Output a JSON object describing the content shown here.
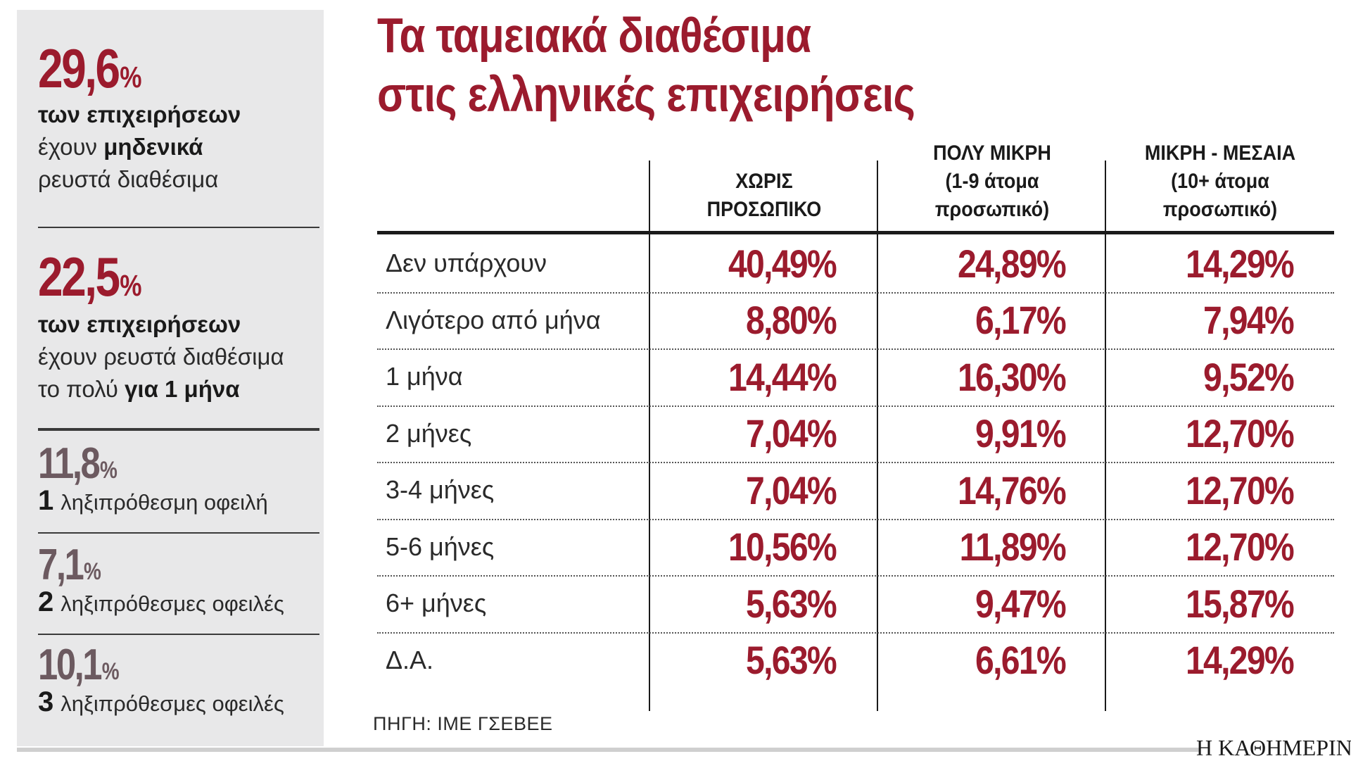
{
  "title": {
    "line1": "Τα ταμειακά διαθέσιμα",
    "line2": "στις ελληνικές επιχειρήσεις"
  },
  "sidebar": {
    "stat1": {
      "number": "29,6",
      "pct": "%",
      "line1": "των επιχειρήσεων",
      "line2_pre": "έχουν ",
      "line2_bold": "μηδενικά",
      "line3": "ρευστά διαθέσιμα"
    },
    "stat2": {
      "number": "22,5",
      "pct": "%",
      "line1": "των επιχειρήσεων",
      "line2": "έχουν ρευστά διαθέσιμα",
      "line3_pre": "το πολύ ",
      "line3_bold": "για 1 μήνα"
    },
    "stat3": {
      "number": "11,8",
      "pct": "%",
      "count": "1",
      "text": "ληξιπρόθεσμη οφειλή"
    },
    "stat4": {
      "number": "7,1",
      "pct": "%",
      "count": "2",
      "text": "ληξιπρόθεσμες οφειλές"
    },
    "stat5": {
      "number": "10,1",
      "pct": "%",
      "count": "3",
      "text": "ληξιπρόθεσμες οφειλές"
    }
  },
  "chart_data": {
    "type": "table",
    "columns": [
      {
        "line1": "ΧΩΡΙΣ",
        "line2": "ΠΡΟΣΩΠΙΚΟ",
        "line3": ""
      },
      {
        "line1": "ΠΟΛΥ ΜΙΚΡΗ",
        "line2": "(1-9 άτομα",
        "line3": "προσωπικό)"
      },
      {
        "line1": "ΜΙΚΡΗ - ΜΕΣΑΙΑ",
        "line2": "(10+ άτομα",
        "line3": "προσωπικό)"
      }
    ],
    "rows": [
      {
        "label": "Δεν υπάρχουν",
        "values": [
          "40,49%",
          "24,89%",
          "14,29%"
        ]
      },
      {
        "label": "Λιγότερο από μήνα",
        "values": [
          "8,80%",
          "6,17%",
          "7,94%"
        ]
      },
      {
        "label": "1 μήνα",
        "values": [
          "14,44%",
          "16,30%",
          "9,52%"
        ]
      },
      {
        "label": "2 μήνες",
        "values": [
          "7,04%",
          "9,91%",
          "12,70%"
        ]
      },
      {
        "label": "3-4 μήνες",
        "values": [
          "7,04%",
          "14,76%",
          "12,70%"
        ]
      },
      {
        "label": "5-6 μήνες",
        "values": [
          "10,56%",
          "11,89%",
          "12,70%"
        ]
      },
      {
        "label": "6+ μήνες",
        "values": [
          "5,63%",
          "9,47%",
          "15,87%"
        ]
      },
      {
        "label": "Δ.Α.",
        "values": [
          "5,63%",
          "6,61%",
          "14,29%"
        ]
      }
    ],
    "source": "ΠΗΓΗ: ΙΜΕ ΓΣΕΒΕΕ"
  },
  "brand": "Η ΚΑΘΗΜΕΡΙΝΗ",
  "colors": {
    "accent": "#9b1b2d",
    "muted_number": "#6c5a60",
    "sidebar_bg": "#e8e8e9"
  }
}
